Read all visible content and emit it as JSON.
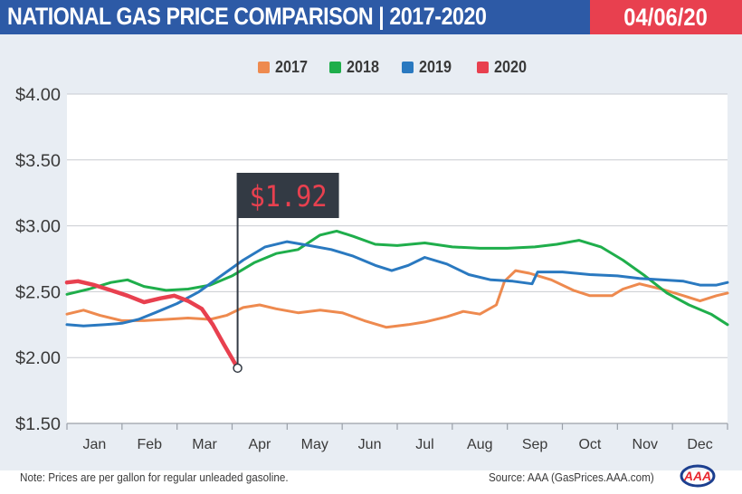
{
  "header": {
    "title": "NATIONAL GAS PRICE COMPARISON | 2017-2020",
    "date": "04/06/20"
  },
  "colors": {
    "header_bg": "#2d5aa6",
    "date_bg": "#e8404f",
    "chart_bg": "#e8edf3",
    "y2017": "#ee8a4f",
    "y2018": "#1fae4b",
    "y2019": "#2a79c0",
    "y2020": "#e8404f",
    "callout_bg": "#333a44",
    "callout_text": "#e8404f"
  },
  "callout": {
    "label": "$1.92",
    "value": 1.92,
    "x": 3.1
  },
  "footer": {
    "note": "Note: Prices are per gallon for regular unleaded gasoline.",
    "source": "Source: AAA (GasPrices.AAA.com)",
    "logo_text": "AAA"
  },
  "chart_data": {
    "type": "line",
    "title": "NATIONAL GAS PRICE COMPARISON | 2017-2020",
    "xlabel": "",
    "ylabel": "",
    "categories": [
      "Jan",
      "Feb",
      "Mar",
      "Apr",
      "May",
      "Jun",
      "Jul",
      "Aug",
      "Sep",
      "Oct",
      "Nov",
      "Dec"
    ],
    "x_unit": "month (0 = start of Jan, 12 = end of Dec)",
    "ylim": [
      1.5,
      4.0
    ],
    "xlim": [
      0,
      12
    ],
    "yticks": [
      "$1.50",
      "$2.00",
      "$2.50",
      "$3.00",
      "$3.50",
      "$4.00"
    ],
    "ytick_values": [
      1.5,
      2.0,
      2.5,
      3.0,
      3.5,
      4.0
    ],
    "grid": "horizontal",
    "legend_position": "top-center",
    "series": [
      {
        "name": "2017",
        "color": "#ee8a4f",
        "points": [
          [
            0,
            2.33
          ],
          [
            0.3,
            2.36
          ],
          [
            0.6,
            2.32
          ],
          [
            1.0,
            2.28
          ],
          [
            1.4,
            2.28
          ],
          [
            1.8,
            2.29
          ],
          [
            2.2,
            2.3
          ],
          [
            2.6,
            2.29
          ],
          [
            2.9,
            2.32
          ],
          [
            3.2,
            2.38
          ],
          [
            3.5,
            2.4
          ],
          [
            3.8,
            2.37
          ],
          [
            4.2,
            2.34
          ],
          [
            4.6,
            2.36
          ],
          [
            5.0,
            2.34
          ],
          [
            5.4,
            2.28
          ],
          [
            5.8,
            2.23
          ],
          [
            6.2,
            2.25
          ],
          [
            6.5,
            2.27
          ],
          [
            6.9,
            2.31
          ],
          [
            7.2,
            2.35
          ],
          [
            7.5,
            2.33
          ],
          [
            7.8,
            2.4
          ],
          [
            7.95,
            2.58
          ],
          [
            8.15,
            2.66
          ],
          [
            8.4,
            2.64
          ],
          [
            8.8,
            2.59
          ],
          [
            9.2,
            2.51
          ],
          [
            9.5,
            2.47
          ],
          [
            9.9,
            2.47
          ],
          [
            10.1,
            2.52
          ],
          [
            10.4,
            2.56
          ],
          [
            10.8,
            2.52
          ],
          [
            11.2,
            2.47
          ],
          [
            11.5,
            2.43
          ],
          [
            11.8,
            2.47
          ],
          [
            12.0,
            2.49
          ]
        ]
      },
      {
        "name": "2018",
        "color": "#1fae4b",
        "points": [
          [
            0,
            2.48
          ],
          [
            0.4,
            2.52
          ],
          [
            0.8,
            2.57
          ],
          [
            1.1,
            2.59
          ],
          [
            1.4,
            2.54
          ],
          [
            1.8,
            2.51
          ],
          [
            2.2,
            2.52
          ],
          [
            2.6,
            2.55
          ],
          [
            3.0,
            2.62
          ],
          [
            3.4,
            2.72
          ],
          [
            3.8,
            2.79
          ],
          [
            4.2,
            2.82
          ],
          [
            4.6,
            2.93
          ],
          [
            4.9,
            2.96
          ],
          [
            5.2,
            2.92
          ],
          [
            5.6,
            2.86
          ],
          [
            6.0,
            2.85
          ],
          [
            6.5,
            2.87
          ],
          [
            7.0,
            2.84
          ],
          [
            7.5,
            2.83
          ],
          [
            8.0,
            2.83
          ],
          [
            8.5,
            2.84
          ],
          [
            8.9,
            2.86
          ],
          [
            9.3,
            2.89
          ],
          [
            9.7,
            2.84
          ],
          [
            10.1,
            2.74
          ],
          [
            10.5,
            2.62
          ],
          [
            10.9,
            2.49
          ],
          [
            11.3,
            2.4
          ],
          [
            11.7,
            2.33
          ],
          [
            12.0,
            2.25
          ]
        ]
      },
      {
        "name": "2019",
        "color": "#2a79c0",
        "points": [
          [
            0,
            2.25
          ],
          [
            0.3,
            2.24
          ],
          [
            0.7,
            2.25
          ],
          [
            1.0,
            2.26
          ],
          [
            1.3,
            2.29
          ],
          [
            1.6,
            2.34
          ],
          [
            2.0,
            2.41
          ],
          [
            2.4,
            2.5
          ],
          [
            2.8,
            2.62
          ],
          [
            3.2,
            2.74
          ],
          [
            3.6,
            2.84
          ],
          [
            4.0,
            2.88
          ],
          [
            4.4,
            2.85
          ],
          [
            4.8,
            2.82
          ],
          [
            5.2,
            2.77
          ],
          [
            5.6,
            2.7
          ],
          [
            5.9,
            2.66
          ],
          [
            6.2,
            2.7
          ],
          [
            6.5,
            2.76
          ],
          [
            6.9,
            2.71
          ],
          [
            7.3,
            2.63
          ],
          [
            7.7,
            2.59
          ],
          [
            8.1,
            2.58
          ],
          [
            8.45,
            2.56
          ],
          [
            8.55,
            2.65
          ],
          [
            9.0,
            2.65
          ],
          [
            9.5,
            2.63
          ],
          [
            10.0,
            2.62
          ],
          [
            10.4,
            2.6
          ],
          [
            10.8,
            2.59
          ],
          [
            11.2,
            2.58
          ],
          [
            11.5,
            2.55
          ],
          [
            11.8,
            2.55
          ],
          [
            12.0,
            2.57
          ]
        ]
      },
      {
        "name": "2020",
        "color": "#e8404f",
        "points": [
          [
            0,
            2.57
          ],
          [
            0.2,
            2.58
          ],
          [
            0.5,
            2.55
          ],
          [
            0.8,
            2.51
          ],
          [
            1.1,
            2.47
          ],
          [
            1.4,
            2.42
          ],
          [
            1.7,
            2.45
          ],
          [
            1.95,
            2.47
          ],
          [
            2.2,
            2.43
          ],
          [
            2.45,
            2.37
          ],
          [
            2.65,
            2.25
          ],
          [
            2.85,
            2.1
          ],
          [
            3.1,
            1.92
          ]
        ]
      }
    ]
  }
}
